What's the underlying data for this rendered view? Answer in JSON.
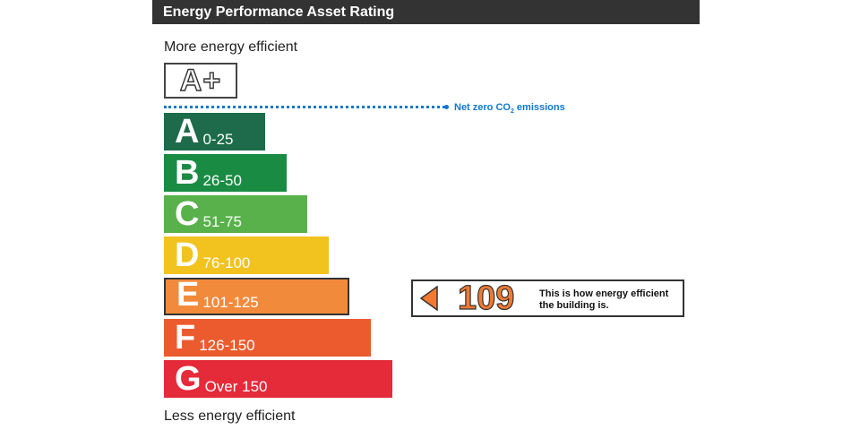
{
  "header": {
    "title": "Energy Performance Asset Rating"
  },
  "labels": {
    "top": "More energy efficient",
    "bottom": "Less energy efficient"
  },
  "aplus": {
    "label": "A+"
  },
  "net_zero": {
    "label_prefix": "Net zero CO",
    "label_sub": "2",
    "label_suffix": " emissions",
    "color": "#1177cc"
  },
  "bands": [
    {
      "letter": "A",
      "range": "0-25",
      "color": "#1d6b4a"
    },
    {
      "letter": "B",
      "range": "26-50",
      "color": "#198b43"
    },
    {
      "letter": "C",
      "range": "51-75",
      "color": "#58b14a"
    },
    {
      "letter": "D",
      "range": "76-100",
      "color": "#f2c21f"
    },
    {
      "letter": "E",
      "range": "101-125",
      "color": "#f28a3c"
    },
    {
      "letter": "F",
      "range": "126-150",
      "color": "#ec5b2e"
    },
    {
      "letter": "G",
      "range": "Over 150",
      "color": "#e52a3a"
    }
  ],
  "current_band": "E",
  "rating": {
    "score": "109",
    "message": "This is how energy efficient the building is.",
    "color": "#f07a33"
  }
}
